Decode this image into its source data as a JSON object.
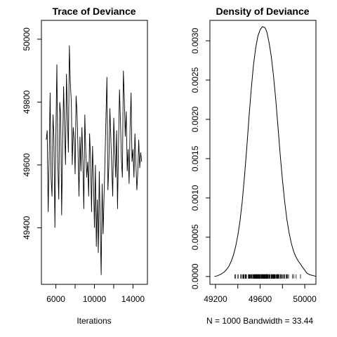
{
  "chart_data": [
    {
      "type": "line",
      "title": "Trace of Deviance",
      "xlabel": "Iterations",
      "ylabel": "",
      "xlim": [
        4500,
        15500
      ],
      "ylim": [
        49220,
        50060
      ],
      "x_ticks": [
        6000,
        10000,
        14000
      ],
      "x_tick_labels": [
        "6000",
        "10000",
        "14000"
      ],
      "y_ticks": [
        49400,
        49600,
        49800,
        50000
      ],
      "y_tick_labels": [
        "49400",
        "49600",
        "49800",
        "50000"
      ],
      "series": [
        {
          "x_start": 5000,
          "x_step": 100,
          "values": [
            49680,
            49710,
            49450,
            49620,
            49830,
            49560,
            49500,
            49760,
            49690,
            49400,
            49700,
            49920,
            49610,
            49490,
            49800,
            49760,
            49440,
            49660,
            49850,
            49720,
            49600,
            49890,
            49750,
            49640,
            49980,
            49860,
            49800,
            49600,
            49720,
            49680,
            49570,
            49820,
            49760,
            49640,
            49500,
            49690,
            49580,
            49720,
            49610,
            49460,
            49760,
            49650,
            49560,
            49610,
            49500,
            49700,
            49620,
            49450,
            49660,
            49560,
            49400,
            49600,
            49340,
            49490,
            49320,
            49580,
            49420,
            49250,
            49540,
            49380,
            49500,
            49620,
            49760,
            49880,
            49520,
            49600,
            49780,
            49690,
            49590,
            49500,
            49750,
            49660,
            49560,
            49710,
            49460,
            49660,
            49840,
            49740,
            49620,
            49560,
            49900,
            49810,
            49690,
            49770,
            49580,
            49650,
            49540,
            49720,
            49830,
            49610,
            49650,
            49560,
            49700,
            49610,
            49520,
            49580,
            49680,
            49590,
            49640,
            49610
          ]
        }
      ]
    },
    {
      "type": "area",
      "title": "Density of Deviance",
      "xlabel": "N = 1000   Bandwidth = 33.44",
      "ylabel": "",
      "xlim": [
        49150,
        50100
      ],
      "ylim": [
        -0.0001,
        0.00326
      ],
      "x_ticks": [
        49200,
        49600,
        50000
      ],
      "x_tick_labels": [
        "49200",
        "49600",
        "50000"
      ],
      "y_ticks": [
        0.0,
        0.0005,
        0.001,
        0.0015,
        0.002,
        0.0025,
        0.003
      ],
      "y_tick_labels": [
        "0.0000",
        "0.0005",
        "0.0010",
        "0.0015",
        "0.0020",
        "0.0025",
        "0.0030"
      ],
      "density_x": [
        49190,
        49220,
        49250,
        49280,
        49300,
        49320,
        49340,
        49360,
        49380,
        49400,
        49420,
        49440,
        49460,
        49480,
        49500,
        49520,
        49540,
        49560,
        49580,
        49600,
        49620,
        49640,
        49650,
        49660,
        49680,
        49700,
        49720,
        49740,
        49760,
        49780,
        49800,
        49820,
        49840,
        49860,
        49880,
        49900,
        49920,
        49940,
        49960,
        49980,
        50000,
        50020,
        50050,
        50080,
        50100
      ],
      "density_y": [
        0.0,
        1e-05,
        3e-05,
        6e-05,
        9e-05,
        0.00013,
        0.00019,
        0.00027,
        0.00038,
        0.00052,
        0.00071,
        0.00096,
        0.00128,
        0.00164,
        0.00202,
        0.00238,
        0.00269,
        0.00291,
        0.00306,
        0.00314,
        0.00318,
        0.00317,
        0.00315,
        0.00311,
        0.00298,
        0.0028,
        0.00255,
        0.00225,
        0.0019,
        0.00155,
        0.00123,
        0.00095,
        0.00072,
        0.00055,
        0.00042,
        0.00032,
        0.00025,
        0.0002,
        0.00016,
        0.00012,
        8e-05,
        4e-05,
        2e-05,
        1e-05,
        0.0
      ],
      "rug_min": 49300,
      "rug_max": 50020,
      "rug_count": 140
    }
  ]
}
